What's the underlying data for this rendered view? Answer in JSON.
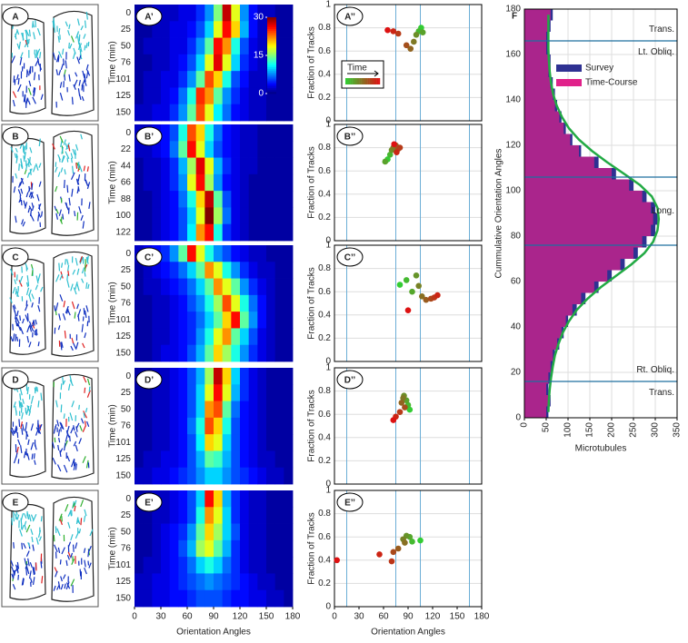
{
  "cell_panels": [
    "A",
    "B",
    "C",
    "D",
    "E"
  ],
  "chart_data": [
    {
      "type": "heatmap",
      "label": "A’",
      "ylabel": "Time (min)",
      "y": [
        0,
        25,
        50,
        76,
        101,
        125,
        150
      ],
      "xlim": [
        0,
        180
      ],
      "zlim": [
        0,
        30
      ],
      "colorscale": "jet",
      "colorbar_ticks": [
        0,
        15,
        30
      ],
      "values": [
        [
          1,
          1,
          2,
          2,
          2,
          3,
          3,
          5,
          8,
          15,
          28,
          18,
          8,
          4,
          2,
          2,
          1,
          1
        ],
        [
          1,
          1,
          2,
          2,
          3,
          3,
          4,
          6,
          10,
          18,
          26,
          20,
          9,
          4,
          2,
          2,
          1,
          1
        ],
        [
          1,
          2,
          2,
          2,
          3,
          3,
          5,
          8,
          14,
          26,
          22,
          12,
          6,
          3,
          2,
          1,
          1,
          1
        ],
        [
          1,
          1,
          2,
          2,
          3,
          4,
          6,
          10,
          18,
          27,
          18,
          10,
          5,
          3,
          2,
          1,
          1,
          1
        ],
        [
          1,
          2,
          2,
          3,
          3,
          5,
          8,
          14,
          24,
          20,
          12,
          6,
          4,
          2,
          2,
          1,
          1,
          1
        ],
        [
          1,
          2,
          2,
          3,
          4,
          7,
          12,
          25,
          22,
          14,
          8,
          5,
          3,
          2,
          2,
          1,
          1,
          1
        ],
        [
          2,
          2,
          3,
          3,
          5,
          8,
          14,
          24,
          18,
          11,
          7,
          4,
          3,
          2,
          2,
          1,
          1,
          1
        ]
      ]
    },
    {
      "type": "heatmap",
      "label": "B’",
      "ylabel": "Time (min)",
      "y": [
        0,
        22,
        44,
        66,
        88,
        100,
        122
      ],
      "xlim": [
        0,
        180
      ],
      "zlim": [
        0,
        30
      ],
      "colorscale": "jet",
      "values": [
        [
          2,
          2,
          3,
          4,
          6,
          12,
          24,
          20,
          12,
          7,
          4,
          3,
          2,
          2,
          1,
          1,
          1,
          1
        ],
        [
          2,
          2,
          3,
          4,
          7,
          14,
          26,
          18,
          10,
          6,
          4,
          3,
          2,
          2,
          1,
          1,
          1,
          1
        ],
        [
          1,
          2,
          2,
          3,
          5,
          9,
          16,
          27,
          18,
          9,
          5,
          3,
          2,
          2,
          1,
          1,
          1,
          1
        ],
        [
          1,
          2,
          2,
          3,
          5,
          8,
          18,
          26,
          16,
          8,
          4,
          3,
          2,
          1,
          1,
          1,
          1,
          1
        ],
        [
          1,
          1,
          2,
          3,
          4,
          7,
          12,
          20,
          28,
          14,
          6,
          3,
          2,
          1,
          1,
          1,
          1,
          1
        ],
        [
          1,
          1,
          2,
          3,
          4,
          6,
          10,
          18,
          30,
          16,
          7,
          3,
          2,
          1,
          1,
          1,
          1,
          1
        ],
        [
          1,
          1,
          2,
          3,
          4,
          6,
          11,
          22,
          26,
          12,
          5,
          3,
          2,
          1,
          1,
          1,
          1,
          1
        ]
      ]
    },
    {
      "type": "heatmap",
      "label": "C’",
      "ylabel": "Time (min)",
      "y": [
        0,
        25,
        50,
        76,
        101,
        125,
        150
      ],
      "xlim": [
        0,
        180
      ],
      "zlim": [
        0,
        30
      ],
      "colorscale": "jet",
      "values": [
        [
          2,
          3,
          4,
          5,
          8,
          14,
          26,
          18,
          12,
          8,
          6,
          4,
          3,
          2,
          2,
          1,
          1,
          1
        ],
        [
          1,
          2,
          3,
          4,
          5,
          7,
          10,
          14,
          22,
          18,
          12,
          8,
          5,
          3,
          2,
          2,
          1,
          1
        ],
        [
          1,
          2,
          2,
          3,
          4,
          5,
          7,
          10,
          14,
          22,
          18,
          14,
          8,
          5,
          3,
          2,
          1,
          1
        ],
        [
          1,
          1,
          2,
          2,
          3,
          4,
          6,
          8,
          12,
          16,
          24,
          18,
          12,
          7,
          4,
          2,
          1,
          1
        ],
        [
          1,
          1,
          2,
          2,
          3,
          4,
          5,
          7,
          10,
          14,
          20,
          26,
          14,
          8,
          4,
          2,
          1,
          1
        ],
        [
          1,
          1,
          2,
          2,
          3,
          4,
          5,
          8,
          12,
          18,
          22,
          14,
          10,
          6,
          3,
          2,
          1,
          1
        ],
        [
          1,
          1,
          2,
          3,
          3,
          4,
          6,
          9,
          14,
          20,
          16,
          12,
          8,
          5,
          3,
          2,
          1,
          1
        ]
      ]
    },
    {
      "type": "heatmap",
      "label": "D’",
      "ylabel": "Time (min)",
      "y": [
        0,
        25,
        50,
        76,
        101,
        125,
        150
      ],
      "xlim": [
        0,
        180
      ],
      "zlim": [
        0,
        30
      ],
      "colorscale": "jet",
      "values": [
        [
          1,
          1,
          2,
          2,
          3,
          4,
          6,
          9,
          16,
          28,
          20,
          10,
          5,
          3,
          2,
          1,
          1,
          1
        ],
        [
          1,
          1,
          2,
          2,
          3,
          4,
          6,
          10,
          18,
          26,
          18,
          9,
          5,
          3,
          2,
          1,
          1,
          1
        ],
        [
          1,
          1,
          2,
          2,
          3,
          4,
          6,
          10,
          22,
          24,
          14,
          7,
          4,
          3,
          2,
          1,
          1,
          1
        ],
        [
          1,
          1,
          2,
          2,
          3,
          4,
          7,
          12,
          24,
          20,
          12,
          6,
          4,
          3,
          2,
          1,
          1,
          1
        ],
        [
          1,
          1,
          2,
          2,
          3,
          4,
          6,
          11,
          20,
          18,
          10,
          6,
          4,
          3,
          2,
          1,
          1,
          1
        ],
        [
          1,
          2,
          2,
          3,
          3,
          4,
          6,
          9,
          14,
          13,
          9,
          6,
          4,
          3,
          2,
          2,
          1,
          1
        ],
        [
          2,
          2,
          3,
          3,
          4,
          5,
          6,
          8,
          10,
          10,
          8,
          6,
          5,
          4,
          3,
          2,
          2,
          1
        ]
      ]
    },
    {
      "type": "heatmap",
      "label": "E’",
      "ylabel": "Time (min)",
      "y": [
        0,
        25,
        50,
        76,
        101,
        125,
        150
      ],
      "xlim": [
        0,
        180
      ],
      "zlim": [
        0,
        30
      ],
      "colorscale": "jet",
      "xticks": [
        0,
        30,
        60,
        90,
        120,
        150,
        180
      ],
      "xlabel": "Orientation Angles",
      "values": [
        [
          1,
          1,
          2,
          2,
          3,
          4,
          6,
          10,
          26,
          20,
          9,
          5,
          3,
          2,
          2,
          1,
          1,
          1
        ],
        [
          1,
          1,
          2,
          2,
          3,
          4,
          6,
          12,
          22,
          18,
          10,
          5,
          3,
          2,
          2,
          1,
          1,
          1
        ],
        [
          1,
          1,
          2,
          3,
          4,
          5,
          8,
          14,
          20,
          16,
          10,
          6,
          3,
          2,
          2,
          1,
          1,
          1
        ],
        [
          1,
          1,
          2,
          3,
          4,
          6,
          9,
          16,
          18,
          14,
          9,
          5,
          3,
          2,
          2,
          1,
          1,
          1
        ],
        [
          1,
          2,
          2,
          3,
          4,
          5,
          7,
          10,
          12,
          10,
          7,
          5,
          3,
          2,
          2,
          1,
          1,
          1
        ],
        [
          2,
          2,
          3,
          3,
          4,
          5,
          6,
          7,
          8,
          7,
          6,
          5,
          4,
          3,
          2,
          2,
          1,
          1
        ],
        [
          2,
          2,
          3,
          3,
          4,
          4,
          5,
          6,
          6,
          6,
          5,
          4,
          4,
          3,
          3,
          2,
          2,
          1
        ]
      ]
    },
    {
      "type": "scatter",
      "label": "A’’",
      "ylabel": "Fraction of Tracks",
      "legend_label": "Time",
      "color_scale": [
        "#33cc33",
        "#dd1111"
      ],
      "xlim": [
        0,
        180
      ],
      "ylim": [
        0,
        1
      ],
      "yticks": [
        0,
        0.2,
        0.4,
        0.6,
        0.8,
        1
      ],
      "vlines": [
        15,
        75,
        105,
        165
      ],
      "grid": true,
      "x": [
        106,
        103,
        108,
        100,
        97,
        93,
        88,
        78,
        72,
        65
      ],
      "values": [
        0.8,
        0.77,
        0.76,
        0.74,
        0.68,
        0.62,
        0.65,
        0.75,
        0.77,
        0.78
      ]
    },
    {
      "type": "scatter",
      "label": "B’’",
      "ylabel": "Fraction of Tracks",
      "color_scale": [
        "#33cc33",
        "#dd1111"
      ],
      "xlim": [
        0,
        180
      ],
      "ylim": [
        0,
        1
      ],
      "yticks": [
        0,
        0.2,
        0.4,
        0.6,
        0.8,
        1
      ],
      "vlines": [
        15,
        75,
        105,
        165
      ],
      "grid": true,
      "x": [
        65,
        68,
        62,
        70,
        72,
        75,
        78,
        80,
        76,
        73
      ],
      "values": [
        0.7,
        0.74,
        0.68,
        0.78,
        0.8,
        0.82,
        0.79,
        0.8,
        0.76,
        0.83
      ]
    },
    {
      "type": "scatter",
      "label": "C’’",
      "ylabel": "Fraction of Tracks",
      "color_scale": [
        "#33cc33",
        "#dd1111"
      ],
      "xlim": [
        0,
        180
      ],
      "ylim": [
        0,
        1
      ],
      "yticks": [
        0,
        0.2,
        0.4,
        0.6,
        0.8,
        1
      ],
      "vlines": [
        15,
        75,
        105,
        165
      ],
      "grid": true,
      "x": [
        80,
        88,
        95,
        100,
        103,
        107,
        112,
        118,
        122,
        126,
        90
      ],
      "values": [
        0.66,
        0.7,
        0.6,
        0.74,
        0.65,
        0.56,
        0.53,
        0.54,
        0.55,
        0.57,
        0.44
      ]
    },
    {
      "type": "scatter",
      "label": "D’’",
      "ylabel": "Fraction of Tracks",
      "color_scale": [
        "#33cc33",
        "#dd1111"
      ],
      "xlim": [
        0,
        180
      ],
      "ylim": [
        0,
        1
      ],
      "yticks": [
        0,
        0.2,
        0.4,
        0.6,
        0.8,
        1
      ],
      "vlines": [
        15,
        75,
        105,
        165
      ],
      "grid": true,
      "x": [
        92,
        90,
        88,
        85,
        84,
        82,
        86,
        80,
        75,
        72
      ],
      "values": [
        0.64,
        0.68,
        0.72,
        0.76,
        0.74,
        0.7,
        0.66,
        0.62,
        0.58,
        0.55
      ]
    },
    {
      "type": "scatter",
      "label": "E’’",
      "ylabel": "Fraction of Tracks",
      "color_scale": [
        "#33cc33",
        "#dd1111"
      ],
      "xlim": [
        0,
        180
      ],
      "ylim": [
        0,
        1
      ],
      "yticks": [
        0,
        0.2,
        0.4,
        0.6,
        0.8,
        1
      ],
      "xticks": [
        0,
        30,
        60,
        90,
        120,
        150,
        180
      ],
      "xlabel": "Orientation Angles",
      "vlines": [
        15,
        75,
        105,
        165
      ],
      "grid": true,
      "x": [
        105,
        95,
        92,
        88,
        84,
        86,
        78,
        72,
        70,
        55,
        3
      ],
      "values": [
        0.57,
        0.56,
        0.6,
        0.61,
        0.58,
        0.55,
        0.5,
        0.47,
        0.39,
        0.45,
        0.4
      ]
    },
    {
      "type": "histogram",
      "label": "F",
      "orientation": "horizontal",
      "xlabel": "Microtubules",
      "ylabel": "Cummulative Orientation Angles",
      "bins": [
        0,
        5,
        10,
        15,
        20,
        25,
        30,
        35,
        40,
        45,
        50,
        55,
        60,
        65,
        70,
        75,
        80,
        85,
        90,
        95,
        100,
        105,
        110,
        115,
        120,
        125,
        130,
        135,
        140,
        145,
        150,
        155,
        160,
        165,
        170,
        175,
        180
      ],
      "series": [
        {
          "name": "Survey",
          "color": "#2e3192",
          "values": [
            55,
            60,
            55,
            60,
            65,
            70,
            80,
            90,
            100,
            120,
            140,
            170,
            200,
            230,
            260,
            280,
            300,
            305,
            300,
            280,
            250,
            210,
            170,
            130,
            110,
            95,
            85,
            75,
            70,
            65,
            60,
            60,
            55,
            55,
            60,
            65
          ]
        },
        {
          "name": "Time-Course",
          "color": "#e0218a",
          "values": [
            50,
            55,
            50,
            55,
            60,
            65,
            75,
            85,
            95,
            110,
            130,
            160,
            190,
            220,
            250,
            270,
            290,
            295,
            290,
            270,
            240,
            200,
            160,
            125,
            105,
            90,
            80,
            70,
            65,
            60,
            55,
            55,
            50,
            50,
            55,
            60
          ]
        }
      ],
      "fit": {
        "color": "#22aa44",
        "x": [
          2.5,
          7.5,
          12.5,
          17.5,
          22.5,
          27.5,
          32.5,
          37.5,
          42.5,
          47.5,
          52.5,
          57.5,
          62.5,
          67.5,
          72.5,
          77.5,
          82.5,
          87.5,
          92.5,
          97.5,
          102.5,
          107.5,
          112.5,
          117.5,
          122.5,
          127.5,
          132.5,
          137.5,
          142.5,
          147.5,
          152.5,
          157.5,
          162.5,
          167.5,
          172.5,
          177.5
        ],
        "values": [
          55,
          56,
          58,
          61,
          65,
          70,
          78,
          88,
          102,
          120,
          145,
          175,
          210,
          245,
          275,
          295,
          305,
          308,
          305,
          292,
          265,
          228,
          190,
          155,
          125,
          102,
          86,
          74,
          66,
          61,
          58,
          56,
          55,
          55,
          55,
          55
        ]
      },
      "hlines": [
        16,
        76,
        106,
        166
      ],
      "hline_color": "#1f6f9f",
      "annotations": [
        {
          "text": "Trans.",
          "value": 171
        },
        {
          "text": "Lt. Obliq.",
          "value": 161
        },
        {
          "text": "Long.",
          "value": 91
        },
        {
          "text": "Rt. Obliq.",
          "value": 21
        },
        {
          "text": "Trans.",
          "value": 11
        }
      ],
      "xlim": [
        0,
        350
      ],
      "xticks": [
        0,
        50,
        100,
        150,
        200,
        250,
        300,
        350
      ],
      "ylim": [
        0,
        180
      ],
      "yticks": [
        0,
        20,
        40,
        60,
        80,
        100,
        120,
        140,
        160,
        180
      ],
      "grid": true
    }
  ]
}
